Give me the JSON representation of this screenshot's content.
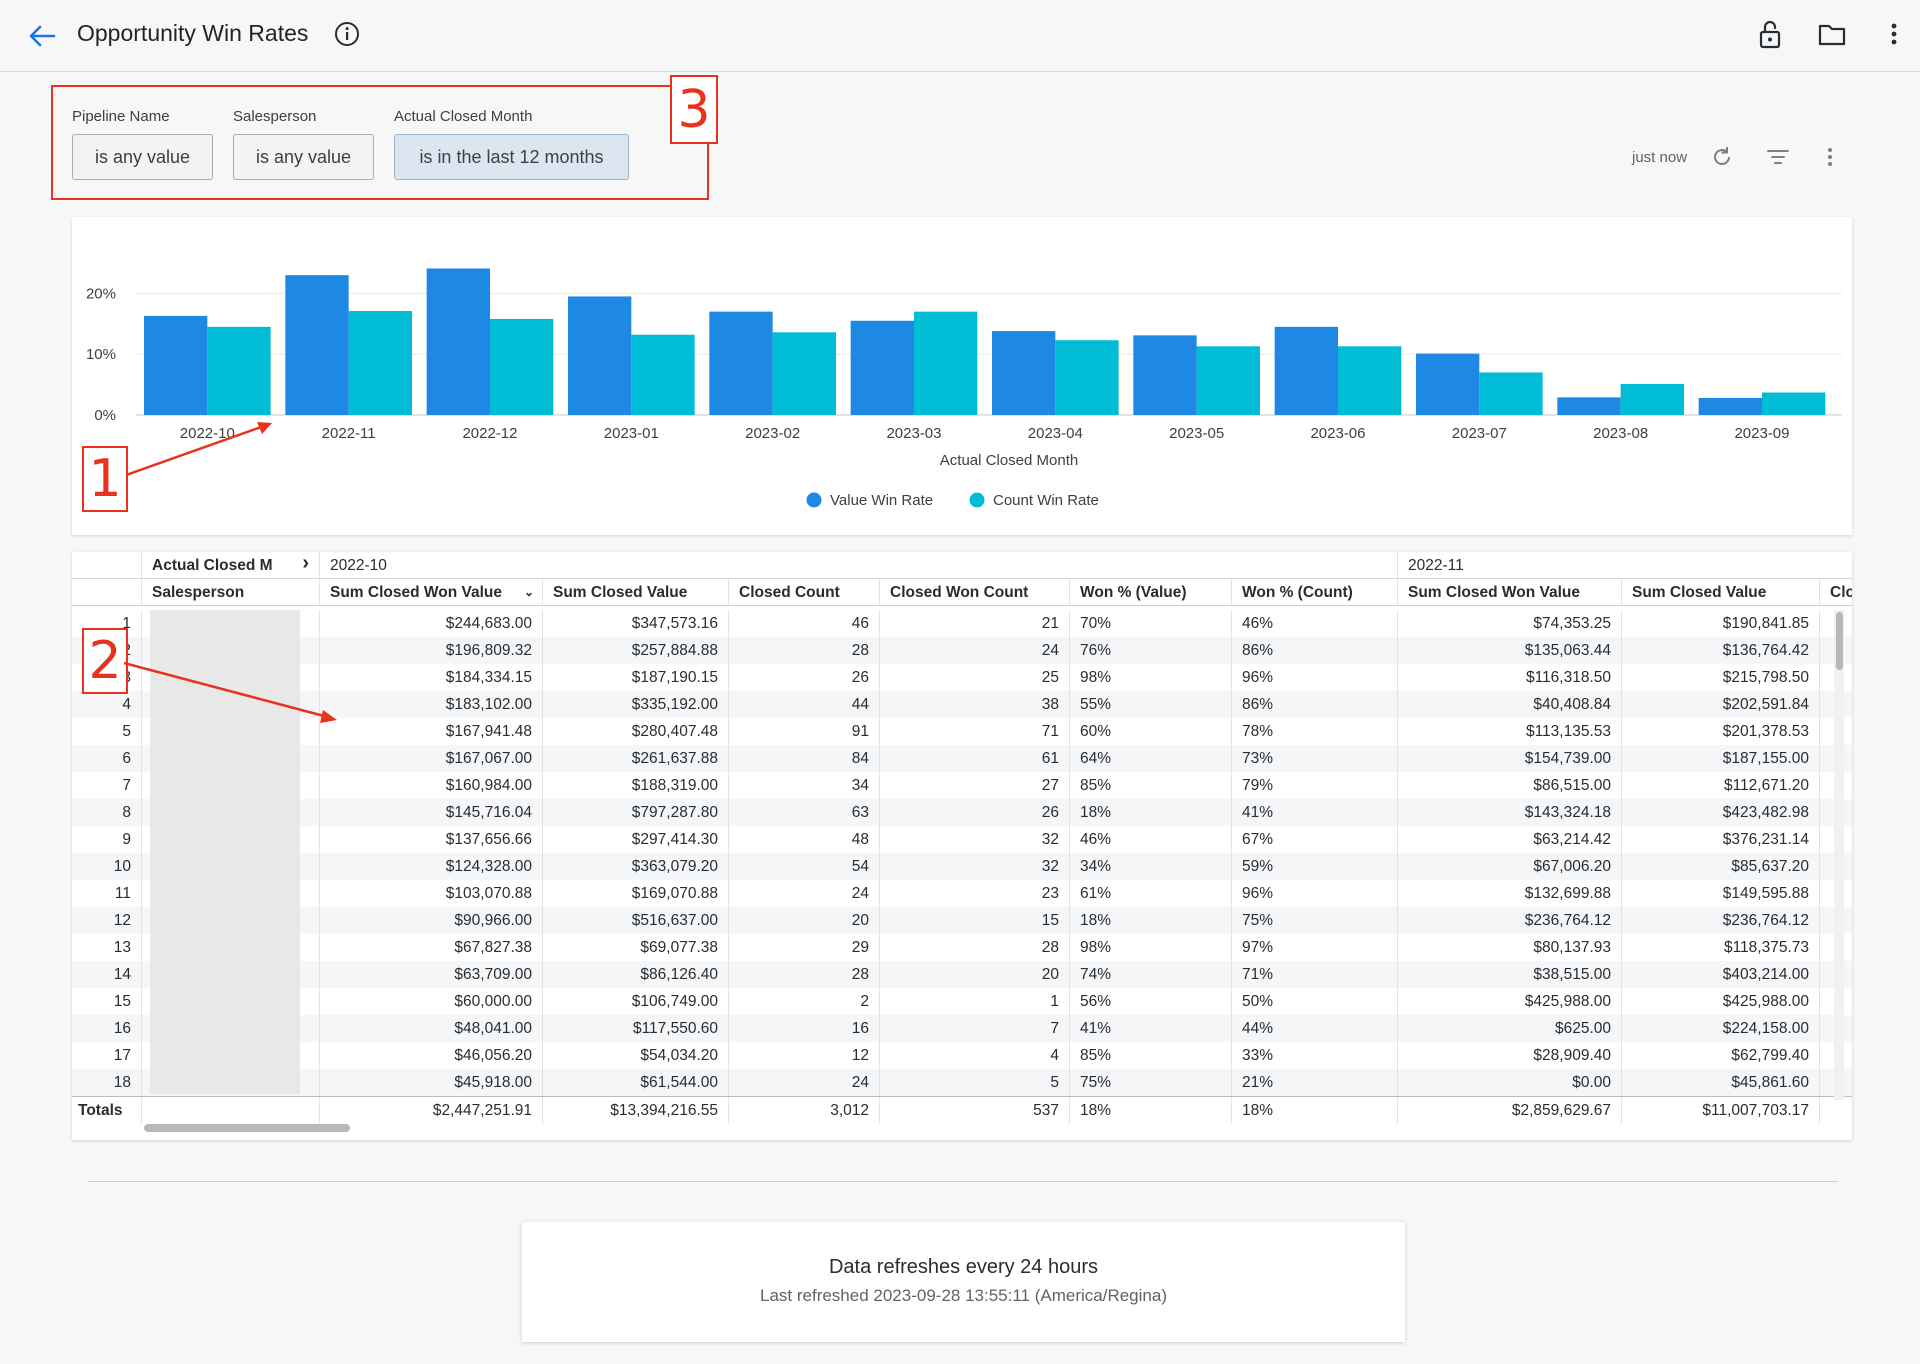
{
  "header": {
    "title": "Opportunity Win Rates"
  },
  "filters": [
    {
      "label": "Pipeline Name",
      "value": "is any value"
    },
    {
      "label": "Salesperson",
      "value": "is any value"
    },
    {
      "label": "Actual Closed Month",
      "value": "is in the last 12 months"
    }
  ],
  "toolbar": {
    "status": "just now"
  },
  "annotations": [
    "1",
    "2",
    "3"
  ],
  "chart_data": {
    "type": "bar",
    "categories": [
      "2022-10",
      "2022-11",
      "2022-12",
      "2023-01",
      "2023-02",
      "2023-03",
      "2023-04",
      "2023-05",
      "2023-06",
      "2023-07",
      "2023-08",
      "2023-09"
    ],
    "series": [
      {
        "name": "Value Win Rate",
        "color": "#1e88e5",
        "values": [
          16.3,
          23.0,
          24.1,
          19.5,
          17.0,
          15.5,
          13.8,
          13.1,
          14.5,
          10.1,
          2.9,
          2.8
        ]
      },
      {
        "name": "Count Win Rate",
        "color": "#00bcd4",
        "values": [
          14.5,
          17.1,
          15.8,
          13.2,
          13.6,
          17.0,
          12.3,
          11.3,
          11.3,
          7.0,
          5.1,
          3.7
        ]
      }
    ],
    "yticks": [
      "0%",
      "10%",
      "20%"
    ],
    "ylim": [
      0,
      25
    ],
    "xlabel": "Actual Closed Month",
    "ylabel": "",
    "legend_position": "bottom-center",
    "grid": true
  },
  "table": {
    "pivot_header": "Actual Closed M",
    "row_header": "Salesperson",
    "groups": [
      "2022-10",
      "2022-11"
    ],
    "columns": [
      "Sum Closed Won Value",
      "Sum Closed Value",
      "Closed Count",
      "Closed Won Count",
      "Won % (Value)",
      "Won % (Count)",
      "Sum Closed Won Value",
      "Sum Closed Value",
      "Close"
    ],
    "rows": [
      [
        "1",
        "$244,683.00",
        "$347,573.16",
        "46",
        "21",
        "70%",
        "46%",
        "$74,353.25",
        "$190,841.85"
      ],
      [
        "2",
        "$196,809.32",
        "$257,884.88",
        "28",
        "24",
        "76%",
        "86%",
        "$135,063.44",
        "$136,764.42"
      ],
      [
        "3",
        "$184,334.15",
        "$187,190.15",
        "26",
        "25",
        "98%",
        "96%",
        "$116,318.50",
        "$215,798.50"
      ],
      [
        "4",
        "$183,102.00",
        "$335,192.00",
        "44",
        "38",
        "55%",
        "86%",
        "$40,408.84",
        "$202,591.84"
      ],
      [
        "5",
        "$167,941.48",
        "$280,407.48",
        "91",
        "71",
        "60%",
        "78%",
        "$113,135.53",
        "$201,378.53"
      ],
      [
        "6",
        "$167,067.00",
        "$261,637.88",
        "84",
        "61",
        "64%",
        "73%",
        "$154,739.00",
        "$187,155.00"
      ],
      [
        "7",
        "$160,984.00",
        "$188,319.00",
        "34",
        "27",
        "85%",
        "79%",
        "$86,515.00",
        "$112,671.20"
      ],
      [
        "8",
        "$145,716.04",
        "$797,287.80",
        "63",
        "26",
        "18%",
        "41%",
        "$143,324.18",
        "$423,482.98"
      ],
      [
        "9",
        "$137,656.66",
        "$297,414.30",
        "48",
        "32",
        "46%",
        "67%",
        "$63,214.42",
        "$376,231.14"
      ],
      [
        "10",
        "$124,328.00",
        "$363,079.20",
        "54",
        "32",
        "34%",
        "59%",
        "$67,006.20",
        "$85,637.20"
      ],
      [
        "11",
        "$103,070.88",
        "$169,070.88",
        "24",
        "23",
        "61%",
        "96%",
        "$132,699.88",
        "$149,595.88"
      ],
      [
        "12",
        "$90,966.00",
        "$516,637.00",
        "20",
        "15",
        "18%",
        "75%",
        "$236,764.12",
        "$236,764.12"
      ],
      [
        "13",
        "$67,827.38",
        "$69,077.38",
        "29",
        "28",
        "98%",
        "97%",
        "$80,137.93",
        "$118,375.73"
      ],
      [
        "14",
        "$63,709.00",
        "$86,126.40",
        "28",
        "20",
        "74%",
        "71%",
        "$38,515.00",
        "$403,214.00"
      ],
      [
        "15",
        "$60,000.00",
        "$106,749.00",
        "2",
        "1",
        "56%",
        "50%",
        "$425,988.00",
        "$425,988.00"
      ],
      [
        "16",
        "$48,041.00",
        "$117,550.60",
        "16",
        "7",
        "41%",
        "44%",
        "$625.00",
        "$224,158.00"
      ],
      [
        "17",
        "$46,056.20",
        "$54,034.20",
        "12",
        "4",
        "85%",
        "33%",
        "$28,909.40",
        "$62,799.40"
      ],
      [
        "18",
        "$45,918.00",
        "$61,544.00",
        "24",
        "5",
        "75%",
        "21%",
        "$0.00",
        "$45,861.60"
      ]
    ],
    "totals": [
      "Totals",
      "$2,447,251.91",
      "$13,394,216.55",
      "3,012",
      "537",
      "18%",
      "18%",
      "$2,859,629.67",
      "$11,007,703.17"
    ]
  },
  "footer": {
    "title": "Data refreshes every 24 hours",
    "subtitle": "Last refreshed 2023-09-28 13:55:11 (America/Regina)"
  },
  "colors": {
    "accent": "#1a73e8",
    "annotation": "#e8321e",
    "series_value": "#1e88e5",
    "series_count": "#00bcd4"
  },
  "icons": [
    "back-arrow-icon",
    "info-icon",
    "lock-icon",
    "folder-icon",
    "more-vertical-icon",
    "refresh-icon",
    "filter-icon"
  ]
}
